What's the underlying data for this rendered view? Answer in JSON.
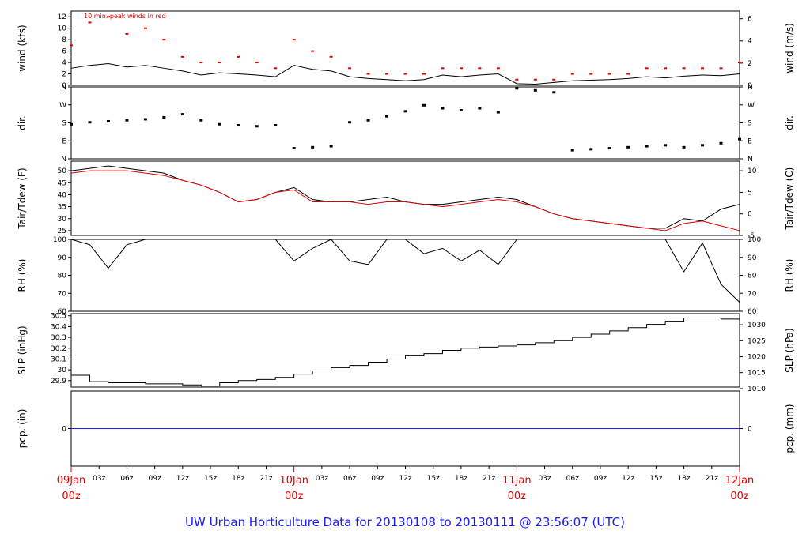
{
  "footer_title": "UW Urban Horticulture Data for 20130108  to  20130111 @ 23:56:07  (UTC)",
  "colors": {
    "black": "#000000",
    "red": "#e00000",
    "blue": "#1a1aff"
  },
  "chart_data": [
    {
      "type": "line",
      "panel": "wind",
      "ylabel": "wind (kts)",
      "ylabel_right": "wind (m/s)",
      "ylim": [
        0,
        13
      ],
      "yticks": [
        0,
        2,
        4,
        6,
        8,
        10,
        12
      ],
      "yticks_right": [
        {
          "value": 0,
          "label": "0"
        },
        {
          "value": 3.89,
          "label": "2"
        },
        {
          "value": 7.78,
          "label": "4"
        },
        {
          "value": 11.66,
          "label": "6"
        }
      ],
      "annotation": "10 min. peak winds in red",
      "x_hours": [
        0,
        2,
        4,
        6,
        8,
        10,
        12,
        14,
        16,
        18,
        20,
        22,
        24,
        26,
        28,
        30,
        32,
        34,
        36,
        38,
        40,
        42,
        44,
        46,
        48,
        50,
        52,
        54,
        56,
        58,
        60,
        62,
        64,
        66,
        68,
        70,
        72
      ],
      "series": [
        {
          "role": "mean",
          "color": "#000000",
          "values": [
            3.0,
            3.5,
            3.8,
            3.2,
            3.5,
            3.0,
            2.5,
            1.8,
            2.2,
            2.0,
            1.8,
            1.5,
            3.5,
            2.8,
            2.5,
            1.5,
            1.2,
            1.0,
            0.8,
            1.0,
            1.8,
            1.5,
            1.8,
            2.0,
            0.3,
            0.2,
            0.5,
            0.8,
            0.9,
            1.0,
            1.2,
            1.5,
            1.3,
            1.6,
            1.8,
            1.7,
            2.0
          ]
        },
        {
          "role": "peak",
          "color": "#e00000",
          "values": [
            7,
            11,
            12,
            9,
            10,
            8,
            5,
            4,
            4,
            5,
            4,
            3,
            8,
            6,
            5,
            3,
            2,
            2,
            2,
            2,
            3,
            3,
            3,
            3,
            1,
            1,
            1,
            2,
            2,
            2,
            2,
            3,
            3,
            3,
            3,
            3,
            4
          ]
        }
      ]
    },
    {
      "type": "scatter",
      "panel": "direction",
      "ylabel": "dir.",
      "ylabel_right": "dir.",
      "ylim": [
        0,
        360
      ],
      "yticks": [
        {
          "value": 0,
          "label": "N"
        },
        {
          "value": 90,
          "label": "E"
        },
        {
          "value": 180,
          "label": "S"
        },
        {
          "value": 270,
          "label": "W"
        },
        {
          "value": 360,
          "label": "N"
        }
      ],
      "x_hours": [
        0,
        2,
        4,
        6,
        8,
        10,
        12,
        14,
        16,
        18,
        20,
        22,
        24,
        26,
        28,
        30,
        32,
        34,
        36,
        38,
        40,
        42,
        44,
        46,
        48,
        50,
        52,
        54,
        56,
        58,
        60,
        62,
        64,
        66,
        68,
        70,
        72
      ],
      "values": [
        175,
        185,
        190,
        195,
        200,
        210,
        225,
        195,
        175,
        170,
        165,
        170,
        55,
        60,
        65,
        185,
        195,
        215,
        240,
        270,
        255,
        245,
        255,
        235,
        355,
        345,
        335,
        45,
        50,
        55,
        60,
        65,
        70,
        60,
        70,
        80,
        100
      ]
    },
    {
      "type": "line",
      "panel": "temperature",
      "ylabel": "Tair/Tdew (F)",
      "ylabel_right": "Tair/Tdew (C)",
      "ylim": [
        23,
        54
      ],
      "yticks": [
        25,
        30,
        35,
        40,
        45,
        50
      ],
      "yticks_right": [
        {
          "value": 23,
          "label": "-5"
        },
        {
          "value": 32,
          "label": "0"
        },
        {
          "value": 41,
          "label": "5"
        },
        {
          "value": 50,
          "label": "10"
        }
      ],
      "x_hours": [
        0,
        2,
        4,
        6,
        8,
        10,
        12,
        14,
        16,
        18,
        20,
        22,
        24,
        26,
        28,
        30,
        32,
        34,
        36,
        38,
        40,
        42,
        44,
        46,
        48,
        50,
        52,
        54,
        56,
        58,
        60,
        62,
        64,
        66,
        68,
        70,
        72
      ],
      "series": [
        {
          "role": "air temperature",
          "color": "#000000",
          "values": [
            50,
            51,
            52,
            51,
            50,
            49,
            46,
            44,
            41,
            37,
            38,
            41,
            43,
            38,
            37,
            37,
            38,
            39,
            37,
            36,
            36,
            37,
            38,
            39,
            38,
            35,
            32,
            30,
            29,
            28,
            27,
            26,
            26,
            30,
            29,
            34,
            36
          ]
        },
        {
          "role": "dew point",
          "color": "#e00000",
          "values": [
            49,
            50,
            50,
            50,
            49,
            48,
            46,
            44,
            41,
            37,
            38,
            41,
            42,
            37,
            37,
            37,
            36,
            37,
            37,
            36,
            35,
            36,
            37,
            38,
            37,
            35,
            32,
            30,
            29,
            28,
            27,
            26,
            25,
            28,
            29,
            27,
            25
          ]
        }
      ]
    },
    {
      "type": "line",
      "panel": "humidity",
      "ylabel": "RH (%)",
      "ylabel_right": "RH (%)",
      "ylim": [
        60,
        100
      ],
      "yticks": [
        60,
        70,
        80,
        90,
        100
      ],
      "x_hours": [
        0,
        2,
        4,
        6,
        8,
        10,
        12,
        14,
        16,
        18,
        20,
        22,
        24,
        26,
        28,
        30,
        32,
        34,
        36,
        38,
        40,
        42,
        44,
        46,
        48,
        50,
        52,
        54,
        56,
        58,
        60,
        62,
        64,
        66,
        68,
        70,
        72
      ],
      "series": [
        {
          "role": "relative humidity",
          "color": "#000000",
          "values": [
            100,
            97,
            84,
            97,
            100,
            100,
            100,
            100,
            100,
            100,
            100,
            100,
            88,
            95,
            100,
            88,
            86,
            100,
            100,
            92,
            95,
            88,
            94,
            86,
            100,
            100,
            100,
            100,
            100,
            100,
            100,
            100,
            100,
            82,
            98,
            75,
            65
          ]
        }
      ]
    },
    {
      "type": "line",
      "panel": "pressure",
      "ylabel": "SLP (inHg)",
      "ylabel_right": "SLP (hPa)",
      "ylim": [
        29.84,
        30.52
      ],
      "yticks": [
        29.9,
        30.0,
        30.1,
        30.2,
        30.3,
        30.4,
        30.5
      ],
      "yticks_right": [
        {
          "value": 29.826,
          "label": "1010"
        },
        {
          "value": 29.974,
          "label": "1015"
        },
        {
          "value": 30.121,
          "label": "1020"
        },
        {
          "value": 30.269,
          "label": "1025"
        },
        {
          "value": 30.417,
          "label": "1030"
        }
      ],
      "x_hours": [
        0,
        2,
        4,
        6,
        8,
        10,
        12,
        14,
        16,
        18,
        20,
        22,
        24,
        26,
        28,
        30,
        32,
        34,
        36,
        38,
        40,
        42,
        44,
        46,
        48,
        50,
        52,
        54,
        56,
        58,
        60,
        62,
        64,
        66,
        68,
        70,
        72
      ],
      "series": [
        {
          "role": "sea level pressure",
          "color": "#000000",
          "values": [
            29.95,
            29.89,
            29.88,
            29.88,
            29.87,
            29.87,
            29.86,
            29.85,
            29.88,
            29.9,
            29.91,
            29.93,
            29.96,
            29.99,
            30.02,
            30.04,
            30.07,
            30.1,
            30.13,
            30.15,
            30.18,
            30.2,
            30.21,
            30.22,
            30.23,
            30.25,
            30.27,
            30.3,
            30.33,
            30.36,
            30.39,
            30.42,
            30.45,
            30.48,
            30.48,
            30.47,
            30.47
          ]
        }
      ]
    },
    {
      "type": "line",
      "panel": "precipitation",
      "ylabel": "pcp. (in)",
      "ylabel_right": "pcp. (mm)",
      "ylim": [
        -1,
        1
      ],
      "yticks": [
        0
      ],
      "yticks_right": [
        {
          "value": 0,
          "label": "0"
        }
      ],
      "x_hours": [
        0,
        72
      ],
      "series": [
        {
          "role": "precipitation",
          "color": "#1a1aff",
          "values": [
            0,
            0
          ]
        }
      ]
    }
  ],
  "x_axis": {
    "range_hours": [
      0,
      72
    ],
    "hour_labels": [
      "03z",
      "06z",
      "09z",
      "12z",
      "15z",
      "18z",
      "21z",
      "03z",
      "06z",
      "09z",
      "12z",
      "15z",
      "18z",
      "21z",
      "03z",
      "06z",
      "09z",
      "12z",
      "15z",
      "18z",
      "21z"
    ],
    "hour_positions": [
      3,
      6,
      9,
      12,
      15,
      18,
      21,
      27,
      30,
      33,
      36,
      39,
      42,
      45,
      51,
      54,
      57,
      60,
      63,
      66,
      69
    ],
    "date_labels": [
      {
        "hour": 0,
        "date": "09Jan",
        "time": "00z"
      },
      {
        "hour": 24,
        "date": "10Jan",
        "time": "00z"
      },
      {
        "hour": 48,
        "date": "11Jan",
        "time": "00z"
      },
      {
        "hour": 72,
        "date": "12Jan",
        "time": "00z"
      }
    ]
  }
}
